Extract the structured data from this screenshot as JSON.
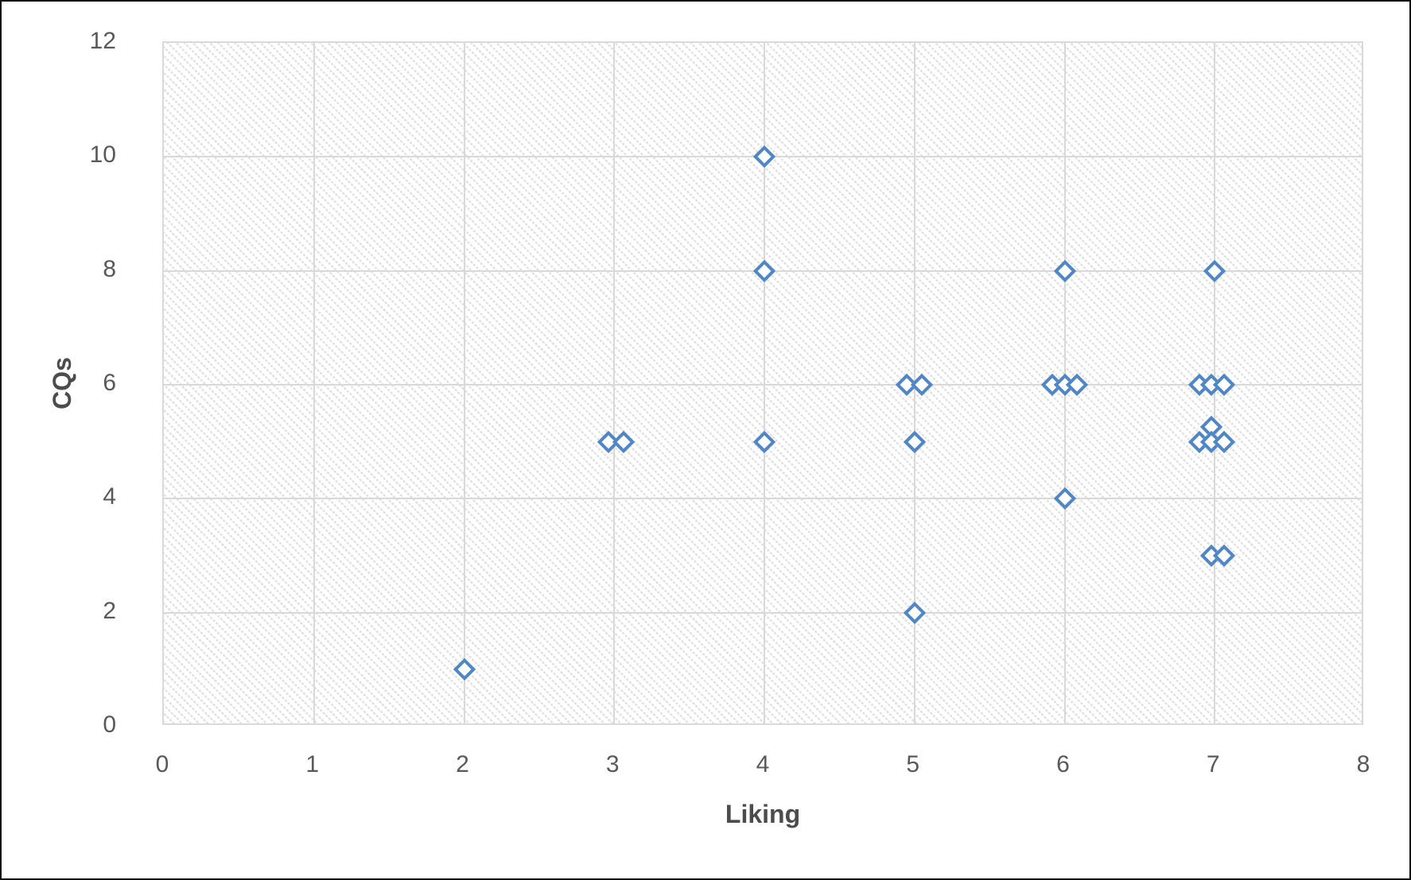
{
  "chart_data": {
    "type": "scatter",
    "title": "",
    "xlabel": "Liking",
    "ylabel": "CQs",
    "xlim": [
      0,
      8
    ],
    "ylim": [
      0,
      12
    ],
    "x_tick_interval": 1,
    "y_tick_interval": 2,
    "x_ticks": [
      "0",
      "1",
      "2",
      "3",
      "4",
      "5",
      "6",
      "7",
      "8"
    ],
    "y_ticks": [
      "0",
      "2",
      "4",
      "6",
      "8",
      "10",
      "12"
    ],
    "grid": "on",
    "legend": "none",
    "plot_area_fill": "light-downward-diagonal-hatch",
    "marker": {
      "shape": "open-diamond",
      "stroke": "#4E86C8",
      "fill": "#FFFFFF"
    },
    "series": [
      {
        "name": "CQs vs Liking",
        "points": [
          {
            "x": 2.0,
            "y": 1.0
          },
          {
            "x": 2.96,
            "y": 5.0
          },
          {
            "x": 3.06,
            "y": 5.0
          },
          {
            "x": 4.0,
            "y": 10.0
          },
          {
            "x": 4.0,
            "y": 8.0
          },
          {
            "x": 4.0,
            "y": 5.0
          },
          {
            "x": 4.95,
            "y": 6.0
          },
          {
            "x": 5.05,
            "y": 6.0
          },
          {
            "x": 5.0,
            "y": 5.0
          },
          {
            "x": 5.0,
            "y": 2.0
          },
          {
            "x": 5.92,
            "y": 6.0
          },
          {
            "x": 6.0,
            "y": 6.0
          },
          {
            "x": 6.08,
            "y": 6.0
          },
          {
            "x": 6.0,
            "y": 8.0
          },
          {
            "x": 6.0,
            "y": 4.0
          },
          {
            "x": 6.9,
            "y": 6.0
          },
          {
            "x": 6.98,
            "y": 6.0
          },
          {
            "x": 7.06,
            "y": 6.0
          },
          {
            "x": 7.0,
            "y": 8.0
          },
          {
            "x": 6.98,
            "y": 5.26
          },
          {
            "x": 6.9,
            "y": 5.0
          },
          {
            "x": 6.98,
            "y": 5.0
          },
          {
            "x": 7.06,
            "y": 5.0
          },
          {
            "x": 6.98,
            "y": 3.0
          },
          {
            "x": 7.06,
            "y": 3.0
          }
        ]
      }
    ],
    "colors": {
      "marker_stroke": "#4E86C8",
      "gridline": "#D9D9D9",
      "tick_label": "#595959",
      "axis_title": "#4C4C4C",
      "outer_border": "#111111"
    }
  }
}
